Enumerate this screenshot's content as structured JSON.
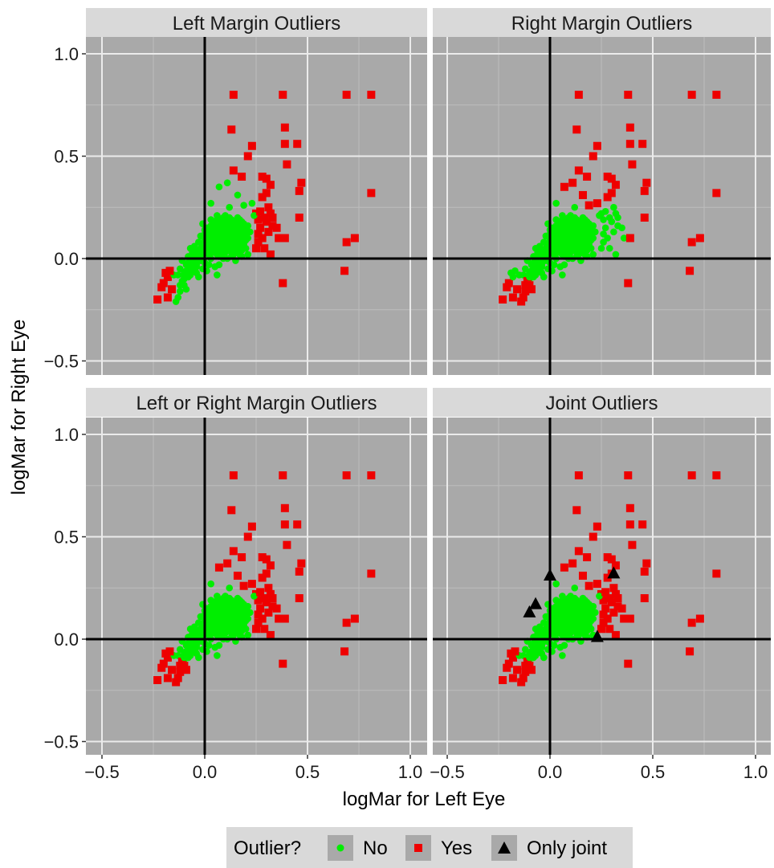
{
  "chart_data": {
    "type": "scatter",
    "xlabel": "logMar for Left Eye",
    "ylabel": "logMar for Right Eye",
    "xlim": [
      -0.55,
      1.06
    ],
    "ylim": [
      -0.57,
      1.06
    ],
    "xticks": [
      -0.5,
      0.0,
      0.5,
      1.0
    ],
    "xtick_labels": [
      "−0.5",
      "0.0",
      "0.5",
      "1.0"
    ],
    "yticks": [
      -0.5,
      0.0,
      0.5,
      1.0
    ],
    "ytick_labels": [
      "−0.5",
      "0.0",
      "0.5",
      "1.0"
    ],
    "panel_background": "#a9a9a9",
    "strip_background": "#d9d9d9",
    "gridlines": true,
    "reference_lines": {
      "x": 0,
      "y": 0
    },
    "legend": {
      "title": "Outlier?",
      "position": "bottom",
      "entries": [
        {
          "key": "no",
          "label": "No",
          "shape": "circle",
          "color": "#00ee00"
        },
        {
          "key": "yes",
          "label": "Yes",
          "shape": "square",
          "color": "#ee0000"
        },
        {
          "key": "joint",
          "label": "Only joint",
          "shape": "triangle",
          "color": "#000000"
        }
      ]
    },
    "panels": [
      {
        "title": "Left Margin Outliers",
        "highlight": "left"
      },
      {
        "title": "Right Margin Outliers",
        "highlight": "right"
      },
      {
        "title": "Left or Right Margin Outliers",
        "highlight": "either"
      },
      {
        "title": "Joint Outliers",
        "highlight": "joint"
      }
    ],
    "points": [
      [
        0.38,
        0.8
      ],
      [
        0.69,
        0.8
      ],
      [
        0.81,
        0.8
      ],
      [
        0.39,
        0.64
      ],
      [
        0.39,
        0.56
      ],
      [
        0.45,
        0.56
      ],
      [
        0.4,
        0.46
      ],
      [
        0.47,
        0.37
      ],
      [
        0.46,
        0.33
      ],
      [
        0.81,
        0.32
      ],
      [
        0.46,
        0.2
      ],
      [
        0.69,
        0.08
      ],
      [
        0.73,
        0.1
      ],
      [
        0.68,
        -0.06
      ],
      [
        0.38,
        -0.12
      ],
      [
        0.35,
        0.15
      ],
      [
        0.36,
        0.1
      ],
      [
        0.39,
        0.1
      ],
      [
        0.32,
        0.02
      ],
      [
        0.33,
        0.2
      ],
      [
        0.3,
        0.32
      ],
      [
        0.32,
        0.36
      ],
      [
        0.28,
        0.4
      ],
      [
        0.25,
        0.22
      ],
      [
        0.26,
        0.12
      ],
      [
        0.25,
        0.05
      ],
      [
        0.13,
        0.63
      ],
      [
        0.14,
        0.8
      ],
      [
        0.21,
        0.5
      ],
      [
        0.23,
        0.55
      ],
      [
        0.11,
        0.37
      ],
      [
        0.14,
        0.43
      ],
      [
        0.18,
        0.4
      ],
      [
        0.07,
        0.35
      ],
      [
        0.16,
        0.31
      ],
      [
        0.19,
        0.26
      ],
      [
        0.12,
        0.25
      ],
      [
        0.03,
        0.27
      ],
      [
        0.23,
        0.27
      ],
      [
        -0.23,
        -0.2
      ],
      [
        -0.2,
        -0.12
      ],
      [
        -0.18,
        -0.19
      ],
      [
        -0.14,
        -0.21
      ],
      [
        -0.12,
        -0.16
      ],
      [
        -0.19,
        -0.07
      ],
      [
        -0.18,
        -0.09
      ],
      [
        0.26,
        0.19
      ],
      [
        0.27,
        0.15
      ],
      [
        0.31,
        0.25
      ],
      [
        0.3,
        0.18
      ],
      [
        0.28,
        0.1
      ],
      [
        0.32,
        0.22
      ],
      [
        0.28,
        0.3
      ],
      [
        0.3,
        0.39
      ],
      [
        0.29,
        0.2
      ],
      [
        0.31,
        0.13
      ],
      [
        0.26,
        0.08
      ],
      [
        0.33,
        0.16
      ],
      [
        0.24,
        0.21
      ],
      [
        0.27,
        0.23
      ],
      [
        0.29,
        0.05
      ],
      [
        0.22,
        0.13
      ],
      [
        -0.16,
        -0.15
      ],
      [
        -0.13,
        -0.19
      ],
      [
        -0.09,
        -0.15
      ],
      [
        -0.15,
        -0.08
      ],
      [
        -0.21,
        -0.14
      ],
      [
        -0.17,
        -0.06
      ],
      [
        -0.1,
        -0.13
      ],
      [
        0.05,
        -0.04
      ],
      [
        0.11,
        0.05
      ],
      [
        0.17,
        0.11
      ],
      [
        0.02,
        0.13
      ],
      [
        0.09,
        0.18
      ],
      [
        -0.04,
        0.02
      ],
      [
        0.14,
        0.08
      ],
      [
        0.21,
        0.02
      ],
      [
        0.0,
        0.06
      ],
      [
        0.07,
        -0.03
      ],
      [
        -0.02,
        0.11
      ],
      [
        0.12,
        0.16
      ],
      [
        0.18,
        0.06
      ],
      [
        -0.06,
        0.03
      ],
      [
        0.06,
        0.21
      ],
      [
        0.15,
        -0.01
      ],
      [
        0.04,
        0.09
      ],
      [
        -0.11,
        -0.01
      ],
      [
        0.1,
        0.12
      ],
      [
        0.01,
        -0.06
      ],
      [
        0.19,
        0.14
      ],
      [
        0.08,
        0.01
      ],
      [
        -0.03,
        0.08
      ],
      [
        0.13,
        0.19
      ],
      [
        0.16,
        0.03
      ],
      [
        -0.08,
        -0.09
      ],
      [
        0.03,
        0.15
      ],
      [
        0.11,
        0.1
      ],
      [
        -0.05,
        -0.02
      ],
      [
        0.07,
        0.07
      ],
      [
        0.2,
        0.09
      ],
      [
        0.0,
        -0.02
      ],
      [
        0.12,
        0.04
      ],
      [
        -0.01,
        0.17
      ],
      [
        0.09,
        0.14
      ],
      [
        0.17,
        0.18
      ],
      [
        0.04,
        0.03
      ],
      [
        -0.07,
        0.05
      ],
      [
        0.14,
        0.12
      ],
      [
        0.06,
        -0.08
      ],
      [
        0.02,
        0.1
      ],
      [
        0.1,
        0.21
      ],
      [
        0.18,
        0.01
      ],
      [
        -0.12,
        -0.05
      ],
      [
        0.08,
        0.16
      ],
      [
        0.15,
        0.07
      ],
      [
        0.01,
        0.04
      ],
      [
        -0.04,
        -0.07
      ],
      [
        0.13,
        0.15
      ],
      [
        0.2,
        0.12
      ],
      [
        0.05,
        0.11
      ],
      [
        -0.09,
        -0.03
      ],
      [
        0.11,
        0.0
      ],
      [
        0.03,
        0.19
      ],
      [
        0.16,
        0.14
      ],
      [
        0.07,
        0.09
      ],
      [
        -0.02,
        0.01
      ],
      [
        0.09,
        0.05
      ],
      [
        0.19,
        0.17
      ],
      [
        0.0,
        0.12
      ],
      [
        0.12,
        0.09
      ],
      [
        -0.06,
        -0.05
      ],
      [
        0.05,
        0.16
      ],
      [
        0.14,
        0.02
      ],
      [
        0.02,
        -0.03
      ],
      [
        0.17,
        0.08
      ],
      [
        -0.1,
        -0.1
      ],
      [
        0.08,
        0.12
      ],
      [
        0.21,
        0.16
      ],
      [
        0.04,
        0.06
      ],
      [
        -0.03,
        -0.09
      ],
      [
        0.13,
        0.06
      ],
      [
        0.1,
        0.18
      ],
      [
        0.06,
        0.02
      ],
      [
        -0.08,
        0.01
      ],
      [
        0.15,
        0.11
      ],
      [
        0.01,
        0.08
      ],
      [
        0.18,
        0.13
      ],
      [
        0.11,
        0.14
      ],
      [
        -0.05,
        0.06
      ],
      [
        0.07,
        0.04
      ],
      [
        0.16,
        0.2
      ],
      [
        0.03,
        0.0
      ],
      [
        -0.13,
        -0.08
      ],
      [
        0.09,
        0.09
      ],
      [
        0.2,
        0.05
      ],
      [
        0.02,
        0.14
      ],
      [
        0.12,
        0.12
      ],
      [
        -0.01,
        -0.05
      ],
      [
        0.06,
        0.13
      ],
      [
        0.14,
        0.05
      ],
      [
        0.08,
        0.07
      ],
      [
        0.17,
        0.15
      ],
      [
        -0.07,
        -0.06
      ],
      [
        0.04,
        0.18
      ],
      [
        0.19,
        0.1
      ],
      [
        0.1,
        0.03
      ],
      [
        0.0,
        0.09
      ],
      [
        0.15,
        0.17
      ],
      [
        -0.04,
        0.04
      ],
      [
        0.07,
        0.11
      ],
      [
        0.13,
        0.01
      ],
      [
        0.05,
        0.07
      ],
      [
        -0.1,
        -0.07
      ],
      [
        0.11,
        0.16
      ],
      [
        0.18,
        0.04
      ],
      [
        0.03,
        0.12
      ],
      [
        0.16,
        0.09
      ],
      [
        -0.02,
        -0.01
      ],
      [
        0.09,
        0.2
      ],
      [
        0.06,
        0.06
      ],
      [
        0.12,
        0.13
      ],
      [
        -0.11,
        -0.11
      ],
      [
        0.02,
        0.05
      ],
      [
        0.14,
        0.18
      ],
      [
        0.08,
        0.03
      ],
      [
        0.2,
        0.14
      ],
      [
        0.04,
        0.1
      ],
      [
        -0.06,
        0.0
      ],
      [
        0.1,
        0.07
      ],
      [
        0.17,
        0.12
      ],
      [
        0.01,
        0.15
      ],
      [
        0.13,
        0.1
      ],
      [
        0.06,
        0.19
      ],
      [
        -0.03,
        0.03
      ],
      [
        0.15,
        0.04
      ],
      [
        0.05,
        0.14
      ],
      [
        0.09,
        0.0
      ],
      [
        0.18,
        0.18
      ],
      [
        0.0,
        0.03
      ],
      [
        0.11,
        0.08
      ],
      [
        -0.08,
        -0.04
      ],
      [
        0.07,
        0.17
      ],
      [
        0.16,
        0.06
      ],
      [
        0.03,
        0.08
      ],
      [
        0.12,
        0.2
      ],
      [
        -0.05,
        -0.06
      ],
      [
        0.1,
        0.1
      ],
      [
        0.19,
        0.07
      ],
      [
        0.02,
        0.02
      ],
      [
        0.14,
        0.15
      ],
      [
        0.06,
        0.09
      ],
      [
        -0.12,
        -0.13
      ],
      [
        0.08,
        0.19
      ],
      [
        0.17,
        0.02
      ],
      [
        0.04,
        0.13
      ],
      [
        0.13,
        0.17
      ],
      [
        -0.01,
        0.07
      ],
      [
        0.09,
        0.12
      ],
      [
        0.15,
        0.13
      ],
      [
        0.05,
        0.04
      ],
      [
        -0.07,
        -0.08
      ],
      [
        0.11,
        0.19
      ],
      [
        0.2,
        0.11
      ],
      [
        0.01,
        0.11
      ],
      [
        0.12,
        0.07
      ],
      [
        0.07,
        0.14
      ],
      [
        -0.04,
        -0.04
      ],
      [
        0.16,
        0.16
      ],
      [
        0.03,
        0.05
      ],
      [
        0.1,
        0.15
      ],
      [
        0.18,
        0.09
      ],
      [
        -0.09,
        -0.06
      ],
      [
        0.06,
        0.16
      ],
      [
        0.14,
        0.1
      ],
      [
        0.0,
        0.14
      ],
      [
        0.08,
        0.08
      ],
      [
        0.13,
        0.03
      ],
      [
        -0.02,
        0.05
      ],
      [
        0.17,
        0.19
      ],
      [
        0.04,
        0.15
      ],
      [
        0.11,
        0.11
      ],
      [
        -0.06,
        -0.03
      ],
      [
        0.09,
        0.16
      ],
      [
        0.15,
        0.08
      ],
      [
        0.02,
        0.09
      ],
      [
        0.19,
        0.15
      ],
      [
        0.07,
        0.01
      ],
      [
        -0.1,
        -0.09
      ],
      [
        0.12,
        0.14
      ],
      [
        0.05,
        0.12
      ],
      [
        0.16,
        0.1
      ],
      [
        -0.03,
        0.0
      ],
      [
        0.1,
        0.05
      ],
      [
        0.08,
        0.17
      ],
      [
        0.14,
        0.14
      ],
      [
        0.01,
        0.06
      ],
      [
        0.21,
        0.1
      ],
      [
        0.06,
        0.11
      ],
      [
        -0.05,
        0.02
      ],
      [
        0.13,
        0.16
      ],
      [
        0.03,
        0.16
      ],
      [
        0.17,
        0.05
      ],
      [
        0.09,
        0.13
      ],
      [
        -0.08,
        -0.02
      ],
      [
        0.11,
        0.13
      ],
      [
        0.04,
        0.07
      ],
      [
        0.15,
        0.15
      ],
      [
        0.0,
        0.1
      ],
      [
        0.07,
        0.12
      ],
      [
        0.12,
        0.11
      ],
      [
        -0.04,
        -0.03
      ],
      [
        0.18,
        0.11
      ],
      [
        0.02,
        0.07
      ],
      [
        0.1,
        0.13
      ],
      [
        0.06,
        0.15
      ],
      [
        -0.07,
        -0.01
      ],
      [
        0.14,
        0.09
      ],
      [
        0.08,
        0.1
      ],
      [
        0.16,
        0.12
      ],
      [
        0.03,
        0.1
      ],
      [
        0.11,
        0.06
      ],
      [
        -0.01,
        0.02
      ],
      [
        0.05,
        0.1
      ],
      [
        0.13,
        0.08
      ],
      [
        0.09,
        0.15
      ],
      [
        0.01,
        0.12
      ],
      [
        0.17,
        0.1
      ],
      [
        0.07,
        0.08
      ],
      [
        0.12,
        0.1
      ],
      [
        0.04,
        0.11
      ],
      [
        0.1,
        0.11
      ],
      [
        0.08,
        0.14
      ],
      [
        0.06,
        0.1
      ],
      [
        0.02,
        0.11
      ],
      [
        0.09,
        0.11
      ],
      [
        0.05,
        0.08
      ],
      [
        0.11,
        0.12
      ],
      [
        0.07,
        0.1
      ],
      [
        0.03,
        0.09
      ],
      [
        0.1,
        0.09
      ],
      [
        0.08,
        0.11
      ]
    ],
    "joint_only_points": [
      [
        -0.1,
        0.13
      ],
      [
        -0.07,
        0.17
      ],
      [
        0.0,
        0.31
      ],
      [
        0.23,
        0.01
      ],
      [
        0.31,
        0.32
      ]
    ]
  }
}
